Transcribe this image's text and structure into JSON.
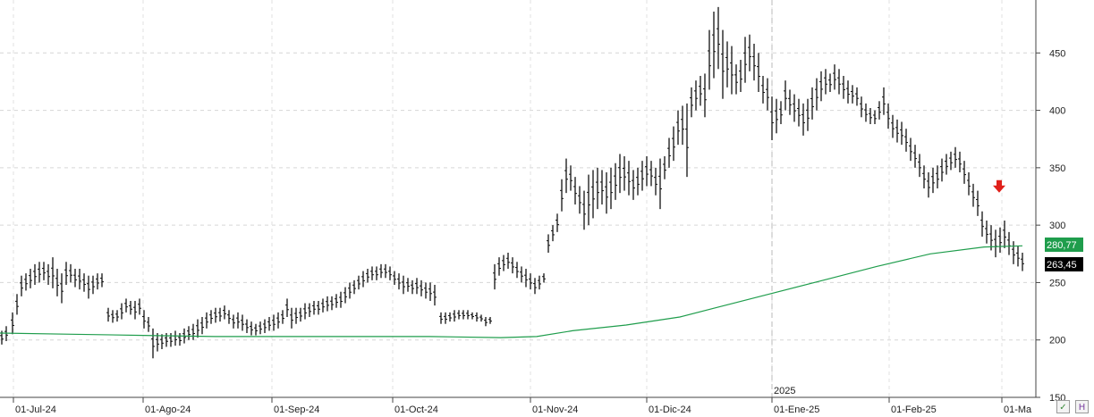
{
  "chart_data": {
    "type": "ohlc-bar",
    "title": "",
    "xlabel": "",
    "ylabel": "",
    "ylim": [
      150,
      500
    ],
    "y_ticks": [
      150,
      200,
      250,
      300,
      350,
      400,
      450
    ],
    "x_labels": [
      "01-Jul-24",
      "01-Ago-24",
      "01-Sep-24",
      "01-Oct-24",
      "01-Nov-24",
      "01-Dic-24",
      "01-Ene-25",
      "01-Feb-25",
      "01-Ma"
    ],
    "year_marker": "2025",
    "grid": true,
    "price_bars": [
      {
        "x": 2,
        "low": 196,
        "high": 208
      },
      {
        "x": 7,
        "low": 199,
        "high": 212
      },
      {
        "x": 14,
        "low": 205,
        "high": 224
      },
      {
        "x": 19,
        "low": 222,
        "high": 240
      },
      {
        "x": 24,
        "low": 238,
        "high": 256
      },
      {
        "x": 29,
        "low": 243,
        "high": 258
      },
      {
        "x": 34,
        "low": 245,
        "high": 262
      },
      {
        "x": 39,
        "low": 248,
        "high": 266
      },
      {
        "x": 44,
        "low": 250,
        "high": 268
      },
      {
        "x": 49,
        "low": 252,
        "high": 268
      },
      {
        "x": 54,
        "low": 248,
        "high": 266
      },
      {
        "x": 59,
        "low": 245,
        "high": 272
      },
      {
        "x": 64,
        "low": 238,
        "high": 262
      },
      {
        "x": 69,
        "low": 232,
        "high": 258
      },
      {
        "x": 74,
        "low": 248,
        "high": 268
      },
      {
        "x": 79,
        "low": 250,
        "high": 266
      },
      {
        "x": 84,
        "low": 246,
        "high": 262
      },
      {
        "x": 89,
        "low": 244,
        "high": 262
      },
      {
        "x": 94,
        "low": 242,
        "high": 258
      },
      {
        "x": 99,
        "low": 236,
        "high": 256
      },
      {
        "x": 104,
        "low": 240,
        "high": 256
      },
      {
        "x": 109,
        "low": 244,
        "high": 258
      },
      {
        "x": 114,
        "low": 246,
        "high": 258
      },
      {
        "x": 121,
        "low": 216,
        "high": 228
      },
      {
        "x": 126,
        "low": 215,
        "high": 226
      },
      {
        "x": 131,
        "low": 216,
        "high": 226
      },
      {
        "x": 136,
        "low": 218,
        "high": 232
      },
      {
        "x": 141,
        "low": 224,
        "high": 236
      },
      {
        "x": 146,
        "low": 222,
        "high": 234
      },
      {
        "x": 151,
        "low": 218,
        "high": 234
      },
      {
        "x": 156,
        "low": 222,
        "high": 236
      },
      {
        "x": 161,
        "low": 210,
        "high": 226
      },
      {
        "x": 166,
        "low": 207,
        "high": 220
      },
      {
        "x": 171,
        "low": 184,
        "high": 210
      },
      {
        "x": 176,
        "low": 190,
        "high": 206
      },
      {
        "x": 181,
        "low": 192,
        "high": 205
      },
      {
        "x": 186,
        "low": 194,
        "high": 206
      },
      {
        "x": 191,
        "low": 194,
        "high": 206
      },
      {
        "x": 196,
        "low": 195,
        "high": 208
      },
      {
        "x": 201,
        "low": 195,
        "high": 206
      },
      {
        "x": 206,
        "low": 197,
        "high": 210
      },
      {
        "x": 211,
        "low": 200,
        "high": 212
      },
      {
        "x": 216,
        "low": 200,
        "high": 214
      },
      {
        "x": 221,
        "low": 202,
        "high": 218
      },
      {
        "x": 226,
        "low": 205,
        "high": 220
      },
      {
        "x": 231,
        "low": 210,
        "high": 224
      },
      {
        "x": 236,
        "low": 214,
        "high": 226
      },
      {
        "x": 241,
        "low": 215,
        "high": 228
      },
      {
        "x": 246,
        "low": 216,
        "high": 228
      },
      {
        "x": 251,
        "low": 218,
        "high": 230
      },
      {
        "x": 256,
        "low": 214,
        "high": 226
      },
      {
        "x": 261,
        "low": 210,
        "high": 222
      },
      {
        "x": 266,
        "low": 210,
        "high": 224
      },
      {
        "x": 271,
        "low": 208,
        "high": 222
      },
      {
        "x": 276,
        "low": 206,
        "high": 218
      },
      {
        "x": 281,
        "low": 204,
        "high": 216
      },
      {
        "x": 286,
        "low": 204,
        "high": 214
      },
      {
        "x": 291,
        "low": 205,
        "high": 216
      },
      {
        "x": 296,
        "low": 206,
        "high": 218
      },
      {
        "x": 301,
        "low": 208,
        "high": 220
      },
      {
        "x": 306,
        "low": 208,
        "high": 222
      },
      {
        "x": 311,
        "low": 210,
        "high": 224
      },
      {
        "x": 316,
        "low": 214,
        "high": 226
      },
      {
        "x": 321,
        "low": 220,
        "high": 236
      },
      {
        "x": 326,
        "low": 210,
        "high": 228
      },
      {
        "x": 331,
        "low": 214,
        "high": 228
      },
      {
        "x": 336,
        "low": 216,
        "high": 228
      },
      {
        "x": 341,
        "low": 218,
        "high": 232
      },
      {
        "x": 346,
        "low": 220,
        "high": 232
      },
      {
        "x": 351,
        "low": 222,
        "high": 234
      },
      {
        "x": 356,
        "low": 222,
        "high": 234
      },
      {
        "x": 361,
        "low": 224,
        "high": 236
      },
      {
        "x": 366,
        "low": 225,
        "high": 238
      },
      {
        "x": 371,
        "low": 226,
        "high": 238
      },
      {
        "x": 376,
        "low": 228,
        "high": 240
      },
      {
        "x": 381,
        "low": 228,
        "high": 242
      },
      {
        "x": 386,
        "low": 232,
        "high": 246
      },
      {
        "x": 391,
        "low": 236,
        "high": 250
      },
      {
        "x": 396,
        "low": 240,
        "high": 252
      },
      {
        "x": 401,
        "low": 244,
        "high": 256
      },
      {
        "x": 406,
        "low": 246,
        "high": 260
      },
      {
        "x": 411,
        "low": 250,
        "high": 262
      },
      {
        "x": 416,
        "low": 252,
        "high": 264
      },
      {
        "x": 421,
        "low": 252,
        "high": 264
      },
      {
        "x": 426,
        "low": 254,
        "high": 266
      },
      {
        "x": 431,
        "low": 254,
        "high": 266
      },
      {
        "x": 436,
        "low": 252,
        "high": 264
      },
      {
        "x": 441,
        "low": 248,
        "high": 260
      },
      {
        "x": 446,
        "low": 244,
        "high": 258
      },
      {
        "x": 451,
        "low": 240,
        "high": 256
      },
      {
        "x": 456,
        "low": 242,
        "high": 254
      },
      {
        "x": 461,
        "low": 240,
        "high": 252
      },
      {
        "x": 466,
        "low": 240,
        "high": 254
      },
      {
        "x": 471,
        "low": 238,
        "high": 252
      },
      {
        "x": 476,
        "low": 236,
        "high": 250
      },
      {
        "x": 481,
        "low": 234,
        "high": 250
      },
      {
        "x": 486,
        "low": 230,
        "high": 248
      },
      {
        "x": 493,
        "low": 214,
        "high": 224
      },
      {
        "x": 498,
        "low": 214,
        "high": 224
      },
      {
        "x": 503,
        "low": 216,
        "high": 224
      },
      {
        "x": 508,
        "low": 216,
        "high": 226
      },
      {
        "x": 513,
        "low": 218,
        "high": 226
      },
      {
        "x": 518,
        "low": 218,
        "high": 226
      },
      {
        "x": 523,
        "low": 218,
        "high": 226
      },
      {
        "x": 528,
        "low": 218,
        "high": 224
      },
      {
        "x": 533,
        "low": 216,
        "high": 224
      },
      {
        "x": 538,
        "low": 216,
        "high": 222
      },
      {
        "x": 543,
        "low": 212,
        "high": 220
      },
      {
        "x": 548,
        "low": 214,
        "high": 220
      },
      {
        "x": 553,
        "low": 244,
        "high": 266
      },
      {
        "x": 558,
        "low": 256,
        "high": 272
      },
      {
        "x": 563,
        "low": 260,
        "high": 274
      },
      {
        "x": 568,
        "low": 262,
        "high": 276
      },
      {
        "x": 573,
        "low": 258,
        "high": 272
      },
      {
        "x": 578,
        "low": 254,
        "high": 268
      },
      {
        "x": 583,
        "low": 250,
        "high": 264
      },
      {
        "x": 588,
        "low": 246,
        "high": 262
      },
      {
        "x": 593,
        "low": 244,
        "high": 258
      },
      {
        "x": 598,
        "low": 240,
        "high": 254
      },
      {
        "x": 603,
        "low": 244,
        "high": 256
      },
      {
        "x": 608,
        "low": 250,
        "high": 258
      },
      {
        "x": 613,
        "low": 276,
        "high": 292
      },
      {
        "x": 618,
        "low": 286,
        "high": 300
      },
      {
        "x": 623,
        "low": 294,
        "high": 310
      },
      {
        "x": 628,
        "low": 312,
        "high": 340
      },
      {
        "x": 633,
        "low": 328,
        "high": 358
      },
      {
        "x": 638,
        "low": 330,
        "high": 352
      },
      {
        "x": 643,
        "low": 318,
        "high": 342
      },
      {
        "x": 648,
        "low": 310,
        "high": 334
      },
      {
        "x": 653,
        "low": 296,
        "high": 330
      },
      {
        "x": 658,
        "low": 300,
        "high": 344
      },
      {
        "x": 663,
        "low": 306,
        "high": 348
      },
      {
        "x": 668,
        "low": 314,
        "high": 350
      },
      {
        "x": 673,
        "low": 318,
        "high": 348
      },
      {
        "x": 678,
        "low": 310,
        "high": 346
      },
      {
        "x": 683,
        "low": 314,
        "high": 350
      },
      {
        "x": 688,
        "low": 322,
        "high": 354
      },
      {
        "x": 693,
        "low": 328,
        "high": 362
      },
      {
        "x": 698,
        "low": 330,
        "high": 360
      },
      {
        "x": 703,
        "low": 326,
        "high": 356
      },
      {
        "x": 708,
        "low": 322,
        "high": 348
      },
      {
        "x": 713,
        "low": 326,
        "high": 350
      },
      {
        "x": 718,
        "low": 330,
        "high": 356
      },
      {
        "x": 723,
        "low": 334,
        "high": 360
      },
      {
        "x": 728,
        "low": 334,
        "high": 356
      },
      {
        "x": 733,
        "low": 326,
        "high": 350
      },
      {
        "x": 738,
        "low": 314,
        "high": 358
      },
      {
        "x": 743,
        "low": 340,
        "high": 360
      },
      {
        "x": 748,
        "low": 350,
        "high": 376
      },
      {
        "x": 753,
        "low": 356,
        "high": 386
      },
      {
        "x": 758,
        "low": 370,
        "high": 400
      },
      {
        "x": 763,
        "low": 370,
        "high": 404
      },
      {
        "x": 768,
        "low": 342,
        "high": 406
      },
      {
        "x": 773,
        "low": 394,
        "high": 420
      },
      {
        "x": 778,
        "low": 400,
        "high": 426
      },
      {
        "x": 783,
        "low": 404,
        "high": 430
      },
      {
        "x": 788,
        "low": 394,
        "high": 432
      },
      {
        "x": 793,
        "low": 418,
        "high": 470
      },
      {
        "x": 798,
        "low": 428,
        "high": 486
      },
      {
        "x": 803,
        "low": 436,
        "high": 490
      },
      {
        "x": 808,
        "low": 410,
        "high": 470
      },
      {
        "x": 813,
        "low": 420,
        "high": 460
      },
      {
        "x": 818,
        "low": 414,
        "high": 456
      },
      {
        "x": 823,
        "low": 414,
        "high": 440
      },
      {
        "x": 828,
        "low": 416,
        "high": 444
      },
      {
        "x": 833,
        "low": 424,
        "high": 464
      },
      {
        "x": 838,
        "low": 434,
        "high": 466
      },
      {
        "x": 843,
        "low": 426,
        "high": 458
      },
      {
        "x": 848,
        "low": 416,
        "high": 450
      },
      {
        "x": 853,
        "low": 406,
        "high": 430
      },
      {
        "x": 858,
        "low": 400,
        "high": 428
      },
      {
        "x": 863,
        "low": 374,
        "high": 412
      },
      {
        "x": 868,
        "low": 380,
        "high": 410
      },
      {
        "x": 873,
        "low": 388,
        "high": 408
      },
      {
        "x": 878,
        "low": 400,
        "high": 426
      },
      {
        "x": 883,
        "low": 396,
        "high": 418
      },
      {
        "x": 888,
        "low": 390,
        "high": 414
      },
      {
        "x": 893,
        "low": 386,
        "high": 410
      },
      {
        "x": 898,
        "low": 378,
        "high": 406
      },
      {
        "x": 903,
        "low": 382,
        "high": 410
      },
      {
        "x": 908,
        "low": 392,
        "high": 420
      },
      {
        "x": 913,
        "low": 400,
        "high": 428
      },
      {
        "x": 918,
        "low": 408,
        "high": 434
      },
      {
        "x": 923,
        "low": 414,
        "high": 436
      },
      {
        "x": 928,
        "low": 416,
        "high": 432
      },
      {
        "x": 933,
        "low": 418,
        "high": 440
      },
      {
        "x": 938,
        "low": 414,
        "high": 436
      },
      {
        "x": 943,
        "low": 410,
        "high": 430
      },
      {
        "x": 948,
        "low": 406,
        "high": 426
      },
      {
        "x": 953,
        "low": 406,
        "high": 422
      },
      {
        "x": 958,
        "low": 404,
        "high": 420
      },
      {
        "x": 963,
        "low": 394,
        "high": 412
      },
      {
        "x": 968,
        "low": 390,
        "high": 406
      },
      {
        "x": 973,
        "low": 388,
        "high": 402
      },
      {
        "x": 978,
        "low": 388,
        "high": 400
      },
      {
        "x": 983,
        "low": 392,
        "high": 408
      },
      {
        "x": 988,
        "low": 396,
        "high": 420
      },
      {
        "x": 993,
        "low": 384,
        "high": 406
      },
      {
        "x": 998,
        "low": 376,
        "high": 396
      },
      {
        "x": 1003,
        "low": 372,
        "high": 392
      },
      {
        "x": 1008,
        "low": 370,
        "high": 390
      },
      {
        "x": 1013,
        "low": 364,
        "high": 384
      },
      {
        "x": 1018,
        "low": 356,
        "high": 376
      },
      {
        "x": 1023,
        "low": 350,
        "high": 370
      },
      {
        "x": 1028,
        "low": 342,
        "high": 362
      },
      {
        "x": 1033,
        "low": 332,
        "high": 352
      },
      {
        "x": 1038,
        "low": 324,
        "high": 346
      },
      {
        "x": 1043,
        "low": 328,
        "high": 350
      },
      {
        "x": 1048,
        "low": 332,
        "high": 352
      },
      {
        "x": 1053,
        "low": 338,
        "high": 358
      },
      {
        "x": 1058,
        "low": 344,
        "high": 362
      },
      {
        "x": 1063,
        "low": 348,
        "high": 364
      },
      {
        "x": 1068,
        "low": 350,
        "high": 368
      },
      {
        "x": 1073,
        "low": 346,
        "high": 364
      },
      {
        "x": 1078,
        "low": 336,
        "high": 356
      },
      {
        "x": 1083,
        "low": 326,
        "high": 346
      },
      {
        "x": 1088,
        "low": 316,
        "high": 336
      },
      {
        "x": 1093,
        "low": 308,
        "high": 330
      },
      {
        "x": 1098,
        "low": 290,
        "high": 312
      },
      {
        "x": 1103,
        "low": 284,
        "high": 304
      },
      {
        "x": 1108,
        "low": 278,
        "high": 300
      },
      {
        "x": 1113,
        "low": 272,
        "high": 296
      },
      {
        "x": 1118,
        "low": 276,
        "high": 298
      },
      {
        "x": 1123,
        "low": 280,
        "high": 304
      },
      {
        "x": 1128,
        "low": 274,
        "high": 294
      },
      {
        "x": 1133,
        "low": 266,
        "high": 286
      },
      {
        "x": 1138,
        "low": 264,
        "high": 282
      },
      {
        "x": 1143,
        "low": 260,
        "high": 276
      }
    ],
    "moving_average": {
      "color": "#1f9d4c",
      "points": [
        [
          0,
          206
        ],
        [
          80,
          205
        ],
        [
          160,
          204
        ],
        [
          240,
          203
        ],
        [
          320,
          203
        ],
        [
          400,
          203
        ],
        [
          480,
          203
        ],
        [
          560,
          202
        ],
        [
          600,
          203
        ],
        [
          640,
          208
        ],
        [
          700,
          213
        ],
        [
          760,
          220
        ],
        [
          800,
          228
        ],
        [
          860,
          240
        ],
        [
          920,
          252
        ],
        [
          980,
          264
        ],
        [
          1040,
          275
        ],
        [
          1100,
          281
        ],
        [
          1143,
          282
        ]
      ]
    },
    "last_price": {
      "value": 263.45,
      "label": "263,45",
      "color": "#000000"
    },
    "ma_value": {
      "value": 280.77,
      "label": "280,77",
      "color": "#1f9d4c"
    },
    "signal_arrow": {
      "direction": "down",
      "x": 1117,
      "y": 333,
      "color": "#e0201a"
    }
  }
}
